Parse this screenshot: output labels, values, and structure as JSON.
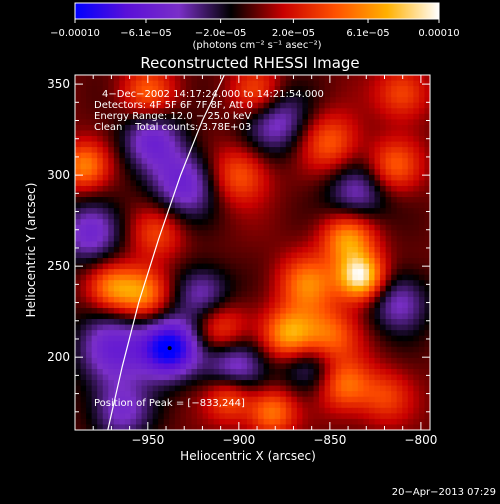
{
  "chart_data": {
    "type": "heatmap",
    "title": "Reconstructed RHESSI Image",
    "xlabel": "Heliocentric X (arcsec)",
    "ylabel": "Heliocentric Y (arcsec)",
    "xlim": [
      -990,
      -795
    ],
    "ylim": [
      160,
      355
    ],
    "xticks": [
      -950,
      -900,
      -850,
      -800
    ],
    "yticks": [
      200,
      250,
      300,
      350
    ],
    "colorbar": {
      "range": [
        -0.0001,
        0.0001
      ],
      "tick_values": [
        -0.0001,
        -6.1e-05,
        -2e-05,
        2e-05,
        6.1e-05,
        0.0001
      ],
      "tick_labels": [
        "−0.00010",
        "−6.1e−05",
        "−2.0e−05",
        "2.0e−05",
        "6.1e−05",
        "0.00010"
      ],
      "unit_label": "(photons cm⁻² s⁻¹ asec⁻²)",
      "colors": [
        "#0000ff",
        "#5a10d8",
        "#7a2fc8",
        "#000000",
        "#c80000",
        "#ff5000",
        "#ffb000",
        "#ffffff"
      ]
    },
    "annotations": [
      "4−Dec−2002 14:17:24.000 to 14:21:54.000",
      "Detectors: 4F 5F 6F 7F 8F, Att 0",
      "Energy Range: 12.0 − 25.0 keV",
      "Clean    Total counts: 3.78E+03",
      "Position of Peak = [−833,244]"
    ],
    "limb_curve": {
      "x": [
        -972,
        -964,
        -955,
        -944,
        -932,
        -920,
        -908
      ],
      "y": [
        160,
        195,
        230,
        265,
        300,
        330,
        355
      ]
    },
    "peak": {
      "x": -833,
      "y": 244
    },
    "blobs": [
      {
        "x": -938,
        "y": 205,
        "a": -1.0,
        "s": 11
      },
      {
        "x": -968,
        "y": 205,
        "a": -0.55,
        "s": 15
      },
      {
        "x": -902,
        "y": 195,
        "a": -0.55,
        "s": 12
      },
      {
        "x": -860,
        "y": 198,
        "a": -0.5,
        "s": 12
      },
      {
        "x": -930,
        "y": 295,
        "a": -0.55,
        "s": 13
      },
      {
        "x": -948,
        "y": 320,
        "a": -0.5,
        "s": 12
      },
      {
        "x": -880,
        "y": 330,
        "a": -0.5,
        "s": 13
      },
      {
        "x": -982,
        "y": 268,
        "a": -0.5,
        "s": 12
      },
      {
        "x": -835,
        "y": 290,
        "a": -0.45,
        "s": 12
      },
      {
        "x": -812,
        "y": 230,
        "a": -0.45,
        "s": 12
      },
      {
        "x": -920,
        "y": 235,
        "a": -0.45,
        "s": 11
      },
      {
        "x": -965,
        "y": 170,
        "a": -0.45,
        "s": 12
      },
      {
        "x": -833,
        "y": 244,
        "a": 1.0,
        "s": 9
      },
      {
        "x": -840,
        "y": 265,
        "a": 0.65,
        "s": 10
      },
      {
        "x": -862,
        "y": 240,
        "a": 0.55,
        "s": 11
      },
      {
        "x": -872,
        "y": 212,
        "a": 0.75,
        "s": 10
      },
      {
        "x": -852,
        "y": 210,
        "a": 0.65,
        "s": 11
      },
      {
        "x": -842,
        "y": 185,
        "a": 0.55,
        "s": 10
      },
      {
        "x": -882,
        "y": 170,
        "a": 0.55,
        "s": 9
      },
      {
        "x": -953,
        "y": 235,
        "a": 0.65,
        "s": 10
      },
      {
        "x": -970,
        "y": 238,
        "a": 0.5,
        "s": 9
      },
      {
        "x": -910,
        "y": 215,
        "a": 0.45,
        "s": 10
      },
      {
        "x": -905,
        "y": 178,
        "a": 0.5,
        "s": 9
      },
      {
        "x": -945,
        "y": 268,
        "a": 0.35,
        "s": 10
      },
      {
        "x": -985,
        "y": 305,
        "a": 0.55,
        "s": 9
      },
      {
        "x": -950,
        "y": 345,
        "a": 0.45,
        "s": 10
      },
      {
        "x": -900,
        "y": 300,
        "a": 0.45,
        "s": 11
      },
      {
        "x": -890,
        "y": 345,
        "a": 0.45,
        "s": 10
      },
      {
        "x": -850,
        "y": 318,
        "a": 0.45,
        "s": 11
      },
      {
        "x": -815,
        "y": 305,
        "a": 0.45,
        "s": 10
      },
      {
        "x": -810,
        "y": 345,
        "a": 0.4,
        "s": 10
      },
      {
        "x": -820,
        "y": 178,
        "a": 0.35,
        "s": 10
      }
    ]
  },
  "footer": {
    "timestamp": "20−Apr−2013 07:29"
  }
}
